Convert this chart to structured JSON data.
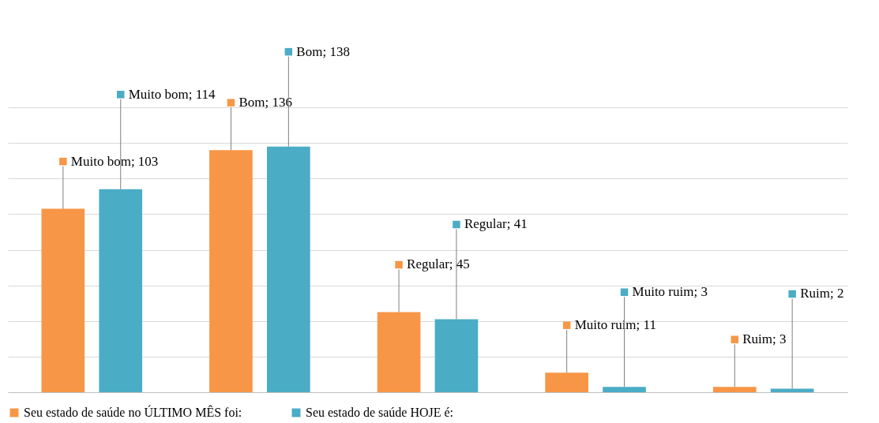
{
  "chart_data": {
    "type": "bar",
    "categories": [
      null,
      null,
      null,
      null,
      null
    ],
    "series": [
      {
        "name": "Seu estado de saúde no ÚLTIMO MÊS foi:",
        "color": "#f79646",
        "values": [
          103,
          136,
          45,
          11,
          3
        ],
        "value_labels": [
          "Muito bom; 103",
          "Bom; 136",
          "Regular; 45",
          "Muito ruim; 11",
          "Ruim; 3"
        ]
      },
      {
        "name": "Seu estado de saúde HOJE é:",
        "color": "#4bacc6",
        "values": [
          114,
          138,
          41,
          3,
          2
        ],
        "value_labels": [
          "Muito bom; 114",
          "Bom; 138",
          "Regular; 41",
          "Muito ruim; 3",
          "Ruim; 2"
        ]
      }
    ],
    "ylim": [
      0,
      160
    ],
    "yticks": [
      {
        "value": 0,
        "label": null
      },
      {
        "value": 20,
        "label": null
      },
      {
        "value": 40,
        "label": null
      },
      {
        "value": 60,
        "label": null
      },
      {
        "value": 80,
        "label": null
      },
      {
        "value": 100,
        "label": null
      },
      {
        "value": 120,
        "label": null
      },
      {
        "value": 140,
        "label": null
      },
      {
        "value": 160,
        "label": null
      }
    ],
    "grid": "y",
    "legend": "bottom",
    "tick_labels": false
  }
}
